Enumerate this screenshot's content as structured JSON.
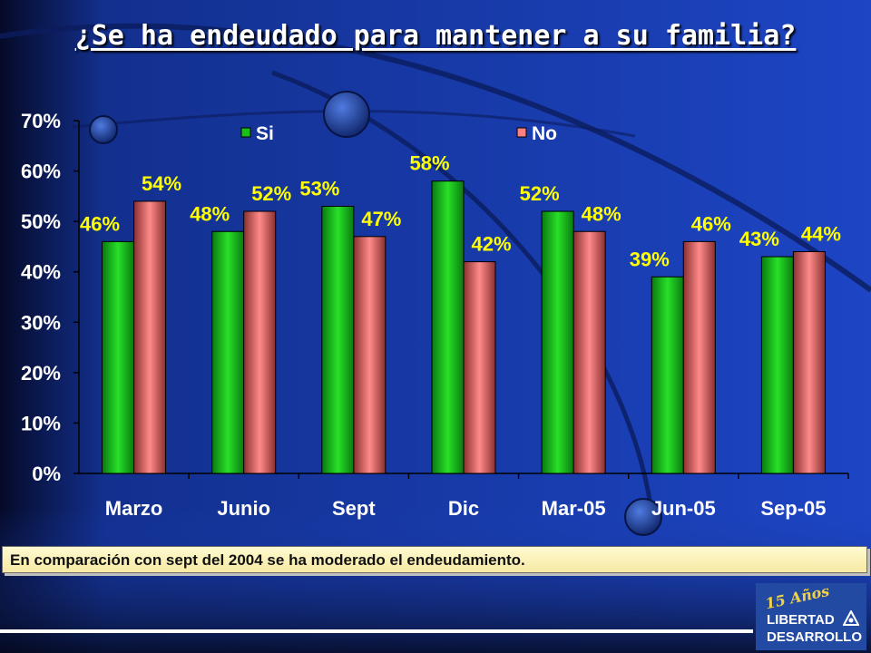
{
  "chart_data": {
    "type": "bar",
    "title": "¿Se ha endeudado para mantener a su familia?",
    "categories": [
      "Marzo",
      "Junio",
      "Sept",
      "Dic",
      "Mar-05",
      "Jun-05",
      "Sep-05"
    ],
    "series": [
      {
        "name": "Si",
        "values": [
          46,
          48,
          53,
          58,
          52,
          39,
          43
        ],
        "labels": [
          "46%",
          "48%",
          "53%",
          "58%",
          "52%",
          "39%",
          "43%"
        ],
        "color": "#18c018"
      },
      {
        "name": "No",
        "values": [
          54,
          52,
          47,
          42,
          48,
          46,
          44
        ],
        "labels": [
          "54%",
          "52%",
          "47%",
          "42%",
          "48%",
          "46%",
          "44%"
        ],
        "color": "#ff8080"
      }
    ],
    "y_ticks": [
      "0%",
      "10%",
      "20%",
      "30%",
      "40%",
      "50%",
      "60%",
      "70%"
    ],
    "ylim": [
      0,
      70
    ],
    "legend_position": "top",
    "grid": false
  },
  "note": "En comparación con sept del 2004 se ha moderado el endeudamiento.",
  "logo": {
    "years": "15 Años",
    "line1": "LIBERTAD",
    "line2": "DESARROLLO"
  }
}
